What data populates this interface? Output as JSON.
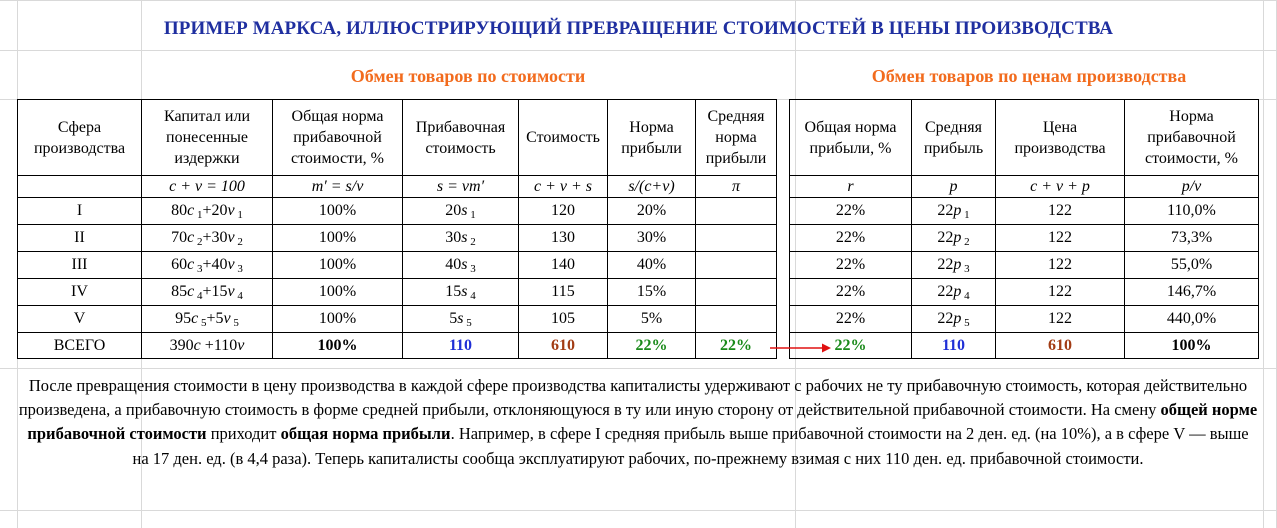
{
  "title": "ПРИМЕР МАРКСА, ИЛЛЮСТРИРУЮЩИЙ ПРЕВРАЩЕНИЕ СТОИМОСТЕЙ В ЦЕНЫ ПРОИЗВОДСТВА",
  "section_left": "Обмен товаров по стоимости",
  "section_right": "Обмен товаров по ценам производства",
  "headers": [
    "Сфера производства",
    "Капитал или понесенные издержки",
    "Общая норма прибавочной стоимости, %",
    "Прибавочная стоимость",
    "Стоимость",
    "Норма прибыли",
    "Средняя норма прибыли",
    "Общая норма прибыли, %",
    "Средняя прибыль",
    "Цена производства",
    "Норма прибавочной стоимости, %"
  ],
  "formulas": [
    "",
    "c + v =  100",
    "m′ = s/v",
    "s = vm′",
    "c + v + s",
    "s/(c+v)",
    "π",
    "r",
    "p",
    "c + v + p",
    "p/v"
  ],
  "rows": [
    {
      "sphere": "I",
      "c": "80",
      "ci": "1",
      "v": "20",
      "vi": "1",
      "m": "100%",
      "s": "20",
      "si": "1",
      "value": "120",
      "profit_rate": "20%",
      "avg": "",
      "r": "22%",
      "p": "22",
      "pi": "1",
      "price": "122",
      "pv": "110,0%"
    },
    {
      "sphere": "II",
      "c": "70",
      "ci": "2",
      "v": "30",
      "vi": "2",
      "m": "100%",
      "s": "30",
      "si": "2",
      "value": "130",
      "profit_rate": "30%",
      "avg": "",
      "r": "22%",
      "p": "22",
      "pi": "2",
      "price": "122",
      "pv": "73,3%"
    },
    {
      "sphere": "III",
      "c": "60",
      "ci": "3",
      "v": "40",
      "vi": "3",
      "m": "100%",
      "s": "40",
      "si": "3",
      "value": "140",
      "profit_rate": "40%",
      "avg": "",
      "r": "22%",
      "p": "22",
      "pi": "3",
      "price": "122",
      "pv": "55,0%"
    },
    {
      "sphere": "IV",
      "c": "85",
      "ci": "4",
      "v": "15",
      "vi": "4",
      "m": "100%",
      "s": "15",
      "si": "4",
      "value": "115",
      "profit_rate": "15%",
      "avg": "",
      "r": "22%",
      "p": "22",
      "pi": "4",
      "price": "122",
      "pv": "146,7%"
    },
    {
      "sphere": "V",
      "c": "95",
      "ci": "5",
      "v": "5",
      "vi": "5",
      "m": "100%",
      "s": "5",
      "si": "5",
      "value": "105",
      "profit_rate": "5%",
      "avg": "",
      "r": "22%",
      "p": "22",
      "pi": "5",
      "price": "122",
      "pv": "440,0%"
    }
  ],
  "total": {
    "sphere": "ВСЕГО",
    "c": "390",
    "v": "110",
    "m": "100%",
    "s": "110",
    "value": "610",
    "profit_rate": "22%",
    "avg": "22%",
    "r": "22%",
    "p": "110",
    "price": "610",
    "pv": "100%"
  },
  "note": {
    "t1": "После превращения стоимости в цену производства в каждой сфере производства капиталисты удерживают с рабочих не ту прибавочную стоимость, которая действительно произведена, а прибавочную стоимость в форме средней прибыли, отклоняющуюся в ту или иную сторону от действительной прибавочной стоимости. На смену ",
    "b1": "общей норме прибавочной стоимости",
    "t2": " приходит ",
    "b2": "общая норма прибыли",
    "t3": ". Например, в сфере I средняя прибыль выше прибавочной стоимости на 2 ден. ед. (на 10%), а в сфере V  — выше на 17 ден. ед. (в 4,4 раза). Теперь капиталисты сообща эксплуатируют рабочих, по-прежнему взимая с них 110 ден. ед. прибавочной стоимости."
  },
  "colors": {
    "title": "#1f2fa0",
    "section": "#f26b1d",
    "blue": "#1f2fd6",
    "brown": "#a23c14",
    "green": "#1a8a1a",
    "arrow": "#e01010"
  }
}
